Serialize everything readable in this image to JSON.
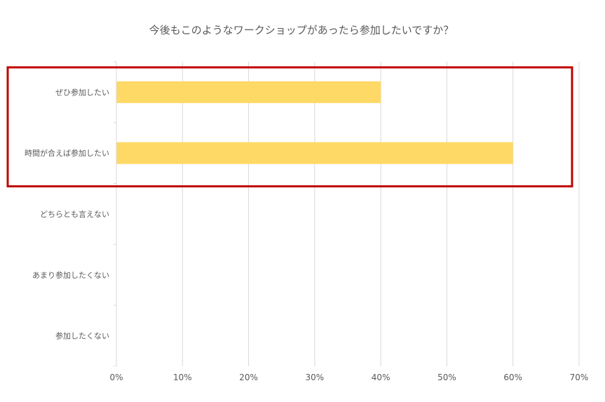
{
  "chart_data": {
    "type": "bar",
    "orientation": "horizontal",
    "title": "今後もこのようなワークショップがあったら参加したいですか？",
    "categories": [
      "ぜひ参加したい",
      "時間が合えば参加したい",
      "どちらとも言えない",
      "あまり参加したくない",
      "参加したくない"
    ],
    "values": [
      40,
      60,
      0,
      0,
      0
    ],
    "xlim": [
      0,
      70
    ],
    "x_ticks": [
      "0%",
      "10%",
      "20%",
      "30%",
      "40%",
      "50%",
      "60%",
      "70%"
    ],
    "grid": true,
    "legend": "none",
    "highlight": {
      "categories": [
        "ぜひ参加したい",
        "時間が合えば参加したい"
      ],
      "color": "#c00000"
    },
    "colors": {
      "bar": "#ffd966",
      "grid": "#d9d9d9",
      "text": "#595959",
      "highlight": "#c00000"
    }
  }
}
